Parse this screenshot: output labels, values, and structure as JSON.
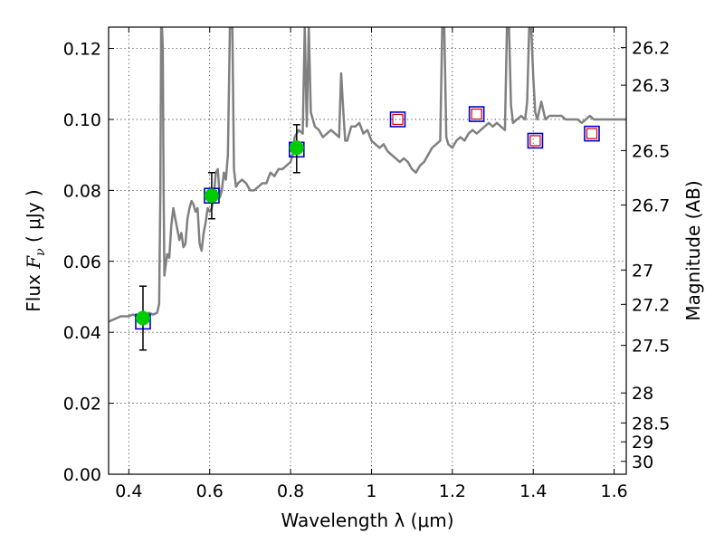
{
  "chart_data": {
    "type": "line",
    "xlabel": "Wavelength  λ (μm)",
    "ylabel_prefix": "Flux  ",
    "ylabel_symbol": "F",
    "ylabel_subscript": "ν",
    "ylabel_suffix": "  ( μJy )",
    "ylabel2": "Magnitude (AB)",
    "xlim": [
      0.35,
      1.63
    ],
    "ylim": [
      0.0,
      0.126
    ],
    "grid": true,
    "x_ticks": [
      0.4,
      0.6,
      0.8,
      1.0,
      1.2,
      1.4,
      1.6
    ],
    "x_tick_labels": [
      "0.4",
      "0.6",
      "0.8",
      "1",
      "1.2",
      "1.4",
      "1.6"
    ],
    "y_ticks": [
      0.0,
      0.02,
      0.04,
      0.06,
      0.08,
      0.1,
      0.12
    ],
    "y_tick_labels": [
      "0.00",
      "0.02",
      "0.04",
      "0.06",
      "0.08",
      "0.10",
      "0.12"
    ],
    "mag_ticks": [
      26.2,
      26.3,
      26.5,
      26.7,
      27,
      27.2,
      27.5,
      28,
      28.5,
      29,
      30
    ],
    "mag_tick_labels": [
      "26.2",
      "26.3",
      "26.5",
      "26.7",
      "27",
      "27.2",
      "27.5",
      "28",
      "28.5",
      "29",
      "30"
    ],
    "series": [
      {
        "name": "model spectrum",
        "color": "#808080",
        "x": [
          0.35,
          0.36,
          0.37,
          0.38,
          0.39,
          0.4,
          0.41,
          0.42,
          0.43,
          0.44,
          0.45,
          0.46,
          0.47,
          0.475,
          0.478,
          0.48,
          0.482,
          0.484,
          0.486,
          0.488,
          0.49,
          0.495,
          0.5,
          0.505,
          0.51,
          0.515,
          0.52,
          0.525,
          0.53,
          0.535,
          0.54,
          0.545,
          0.55,
          0.555,
          0.56,
          0.565,
          0.57,
          0.575,
          0.58,
          0.585,
          0.59,
          0.595,
          0.6,
          0.605,
          0.61,
          0.615,
          0.62,
          0.625,
          0.63,
          0.635,
          0.64,
          0.645,
          0.65,
          0.653,
          0.656,
          0.66,
          0.665,
          0.67,
          0.68,
          0.69,
          0.7,
          0.71,
          0.72,
          0.73,
          0.74,
          0.75,
          0.76,
          0.77,
          0.78,
          0.79,
          0.8,
          0.805,
          0.81,
          0.82,
          0.83,
          0.835,
          0.84,
          0.845,
          0.85,
          0.86,
          0.87,
          0.88,
          0.89,
          0.9,
          0.91,
          0.92,
          0.925,
          0.93,
          0.935,
          0.94,
          0.95,
          0.96,
          0.97,
          0.98,
          0.99,
          1.0,
          1.01,
          1.02,
          1.03,
          1.04,
          1.05,
          1.06,
          1.07,
          1.08,
          1.09,
          1.1,
          1.11,
          1.12,
          1.13,
          1.14,
          1.15,
          1.16,
          1.17,
          1.175,
          1.18,
          1.185,
          1.19,
          1.2,
          1.21,
          1.22,
          1.23,
          1.24,
          1.25,
          1.26,
          1.27,
          1.28,
          1.29,
          1.3,
          1.31,
          1.32,
          1.33,
          1.335,
          1.34,
          1.345,
          1.35,
          1.36,
          1.37,
          1.38,
          1.385,
          1.39,
          1.395,
          1.4,
          1.405,
          1.41,
          1.42,
          1.43,
          1.44,
          1.45,
          1.46,
          1.47,
          1.48,
          1.49,
          1.5,
          1.51,
          1.52,
          1.53,
          1.54,
          1.55,
          1.56,
          1.57,
          1.58,
          1.59,
          1.6,
          1.61,
          1.62,
          1.63
        ],
        "y": [
          0.043,
          0.0435,
          0.044,
          0.0445,
          0.0445,
          0.0445,
          0.045,
          0.0445,
          0.0445,
          0.045,
          0.0455,
          0.045,
          0.0455,
          0.048,
          0.08,
          0.126,
          0.126,
          0.12,
          0.08,
          0.056,
          0.058,
          0.062,
          0.061,
          0.07,
          0.075,
          0.072,
          0.069,
          0.066,
          0.068,
          0.064,
          0.065,
          0.072,
          0.075,
          0.077,
          0.076,
          0.074,
          0.075,
          0.065,
          0.063,
          0.068,
          0.071,
          0.075,
          0.074,
          0.075,
          0.078,
          0.085,
          0.086,
          0.078,
          0.08,
          0.085,
          0.083,
          0.09,
          0.126,
          0.126,
          0.126,
          0.086,
          0.081,
          0.082,
          0.083,
          0.082,
          0.08,
          0.08,
          0.081,
          0.082,
          0.082,
          0.085,
          0.084,
          0.086,
          0.086,
          0.087,
          0.088,
          0.09,
          0.095,
          0.097,
          0.096,
          0.126,
          0.098,
          0.126,
          0.102,
          0.098,
          0.097,
          0.095,
          0.096,
          0.097,
          0.096,
          0.095,
          0.113,
          0.103,
          0.094,
          0.094,
          0.098,
          0.098,
          0.099,
          0.096,
          0.097,
          0.094,
          0.093,
          0.092,
          0.093,
          0.091,
          0.09,
          0.089,
          0.088,
          0.089,
          0.088,
          0.086,
          0.085,
          0.087,
          0.088,
          0.09,
          0.092,
          0.093,
          0.094,
          0.126,
          0.126,
          0.095,
          0.093,
          0.092,
          0.094,
          0.095,
          0.094,
          0.096,
          0.097,
          0.096,
          0.097,
          0.098,
          0.099,
          0.098,
          0.099,
          0.098,
          0.097,
          0.126,
          0.126,
          0.104,
          0.099,
          0.1,
          0.101,
          0.1,
          0.105,
          0.126,
          0.126,
          0.112,
          0.102,
          0.1,
          0.105,
          0.1,
          0.101,
          0.101,
          0.101,
          0.101,
          0.1,
          0.1,
          0.1,
          0.1,
          0.099,
          0.1,
          0.101,
          0.1,
          0.1,
          0.1,
          0.1,
          0.1,
          0.1,
          0.1,
          0.1,
          0.1
        ]
      },
      {
        "name": "detected photometry",
        "marker": "circle",
        "color": "#00cc00",
        "x": [
          0.435,
          0.605,
          0.815
        ],
        "y": [
          0.044,
          0.0785,
          0.092
        ],
        "yerr_low": [
          0.035,
          0.072,
          0.085
        ],
        "yerr_high": [
          0.053,
          0.085,
          0.0985
        ]
      },
      {
        "name": "model photometry",
        "marker": "open square",
        "color": "#0000cc",
        "x": [
          0.435,
          0.605,
          0.815,
          1.065,
          1.26,
          1.405,
          1.545
        ],
        "y": [
          0.043,
          0.0785,
          0.0915,
          0.1,
          0.1015,
          0.094,
          0.096
        ]
      },
      {
        "name": "upper limits",
        "marker": "open square",
        "color": "#dd0000",
        "x": [
          1.065,
          1.26,
          1.405,
          1.545
        ],
        "y": [
          0.1,
          0.1015,
          0.094,
          0.096
        ]
      }
    ]
  }
}
